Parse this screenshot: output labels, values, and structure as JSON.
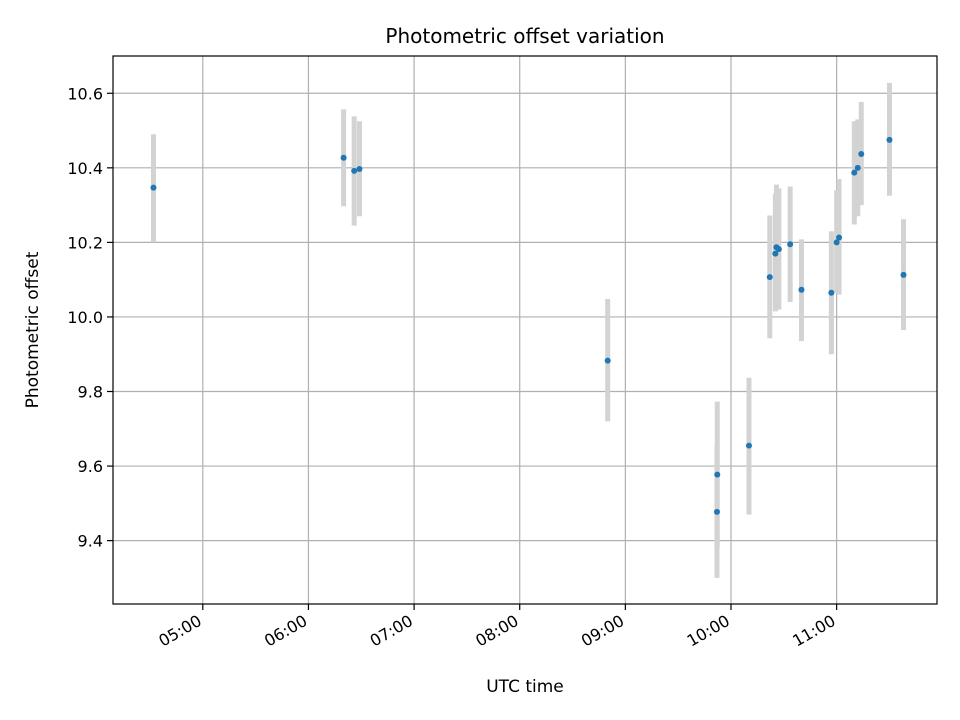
{
  "chart_data": {
    "type": "scatter",
    "title": "Photometric offset variation",
    "xlabel": "UTC time",
    "ylabel": "Photometric offset",
    "x_unit": "hours UTC",
    "xlim": [
      4.15,
      11.95
    ],
    "ylim": [
      9.23,
      10.7
    ],
    "x_ticks": [
      {
        "value": 5,
        "label": "05:00"
      },
      {
        "value": 6,
        "label": "06:00"
      },
      {
        "value": 7,
        "label": "07:00"
      },
      {
        "value": 8,
        "label": "08:00"
      },
      {
        "value": 9,
        "label": "09:00"
      },
      {
        "value": 10,
        "label": "10:00"
      },
      {
        "value": 11,
        "label": "11:00"
      }
    ],
    "y_ticks": [
      {
        "value": 9.4,
        "label": "9.4"
      },
      {
        "value": 9.6,
        "label": "9.6"
      },
      {
        "value": 9.8,
        "label": "9.8"
      },
      {
        "value": 10.0,
        "label": "10.0"
      },
      {
        "value": 10.2,
        "label": "10.2"
      },
      {
        "value": 10.4,
        "label": "10.4"
      },
      {
        "value": 10.6,
        "label": "10.6"
      }
    ],
    "grid": true,
    "marker_color": "#1f77b4",
    "errorbar_color": "#d3d3d3",
    "points": [
      {
        "time": "04:32",
        "x": 4.533,
        "y": 10.347,
        "lo": 10.2,
        "hi": 10.49
      },
      {
        "time": "06:20",
        "x": 6.333,
        "y": 10.427,
        "lo": 10.297,
        "hi": 10.557
      },
      {
        "time": "06:26",
        "x": 6.433,
        "y": 10.392,
        "lo": 10.245,
        "hi": 10.538
      },
      {
        "time": "06:29",
        "x": 6.483,
        "y": 10.397,
        "lo": 10.27,
        "hi": 10.525
      },
      {
        "time": "08:50",
        "x": 8.833,
        "y": 9.883,
        "lo": 9.72,
        "hi": 10.048
      },
      {
        "time": "09:52",
        "x": 9.867,
        "y": 9.477,
        "lo": 9.3,
        "hi": 9.655
      },
      {
        "time": "09:52",
        "x": 9.87,
        "y": 9.577,
        "lo": 9.38,
        "hi": 9.773
      },
      {
        "time": "10:10",
        "x": 10.17,
        "y": 9.655,
        "lo": 9.47,
        "hi": 9.837
      },
      {
        "time": "10:22",
        "x": 10.367,
        "y": 10.107,
        "lo": 9.943,
        "hi": 10.272
      },
      {
        "time": "10:25",
        "x": 10.42,
        "y": 10.17,
        "lo": 10.015,
        "hi": 10.33
      },
      {
        "time": "10:26",
        "x": 10.43,
        "y": 10.187,
        "lo": 10.02,
        "hi": 10.355
      },
      {
        "time": "10:27",
        "x": 10.453,
        "y": 10.182,
        "lo": 10.02,
        "hi": 10.345
      },
      {
        "time": "10:34",
        "x": 10.56,
        "y": 10.195,
        "lo": 10.04,
        "hi": 10.35
      },
      {
        "time": "10:40",
        "x": 10.667,
        "y": 10.073,
        "lo": 9.935,
        "hi": 10.208
      },
      {
        "time": "10:57",
        "x": 10.95,
        "y": 10.065,
        "lo": 9.9,
        "hi": 10.23
      },
      {
        "time": "11:00",
        "x": 11.0,
        "y": 10.2,
        "lo": 10.065,
        "hi": 10.34
      },
      {
        "time": "11:01",
        "x": 11.023,
        "y": 10.213,
        "lo": 10.06,
        "hi": 10.37
      },
      {
        "time": "11:10",
        "x": 11.167,
        "y": 10.387,
        "lo": 10.248,
        "hi": 10.525
      },
      {
        "time": "11:12",
        "x": 11.2,
        "y": 10.4,
        "lo": 10.27,
        "hi": 10.53
      },
      {
        "time": "11:14",
        "x": 11.233,
        "y": 10.437,
        "lo": 10.3,
        "hi": 10.577
      },
      {
        "time": "11:30",
        "x": 11.5,
        "y": 10.475,
        "lo": 10.325,
        "hi": 10.628
      },
      {
        "time": "11:37",
        "x": 11.633,
        "y": 10.113,
        "lo": 9.965,
        "hi": 10.262
      }
    ]
  }
}
